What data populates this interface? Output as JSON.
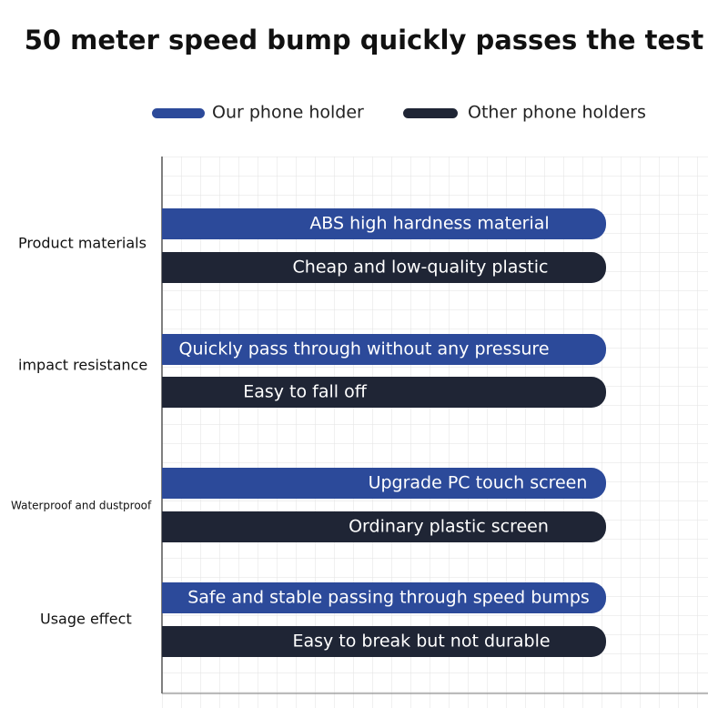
{
  "title": "50 meter speed bump quickly passes the test",
  "legend": [
    "Our phone holder",
    "Other phone holders"
  ],
  "groups": [
    {
      "label": "Product materials",
      "ours": "ABS high hardness material",
      "others": "Cheap and low-quality plastic"
    },
    {
      "label": "impact resistance",
      "ours": "Quickly pass through without any pressure",
      "others": "Easy to fall off"
    },
    {
      "label": "Waterproof and dustproof",
      "ours": "Upgrade PC touch screen",
      "others": "Ordinary plastic screen"
    },
    {
      "label": "Usage effect",
      "ours": "Safe and stable passing through speed bumps",
      "others": "Easy to break but not durable"
    }
  ]
}
